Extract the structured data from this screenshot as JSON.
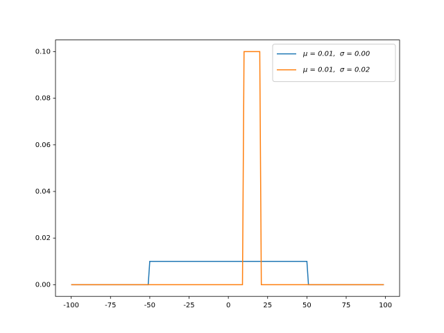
{
  "chart_data": {
    "type": "line",
    "series": [
      {
        "name": "μ = 0.01,  σ = 0.00",
        "color": "#1f77b4",
        "x": [
          -100,
          -51,
          -50,
          50,
          51,
          99
        ],
        "values": [
          0,
          0,
          0.01,
          0.01,
          0,
          0
        ]
      },
      {
        "name": "μ = 0.01,  σ = 0.02",
        "color": "#ff7f0e",
        "x": [
          -100,
          9,
          10,
          20,
          21,
          99
        ],
        "values": [
          0,
          0,
          0.1,
          0.1,
          0,
          0
        ]
      }
    ],
    "xlim": [
      -110,
      109
    ],
    "ylim": [
      -0.005,
      0.105
    ],
    "xticks": [
      -100,
      -75,
      -50,
      -25,
      0,
      25,
      50,
      75,
      100
    ],
    "yticks": [
      {
        "value": 0,
        "label": "0.00"
      },
      {
        "value": 0.02,
        "label": "0.02"
      },
      {
        "value": 0.04,
        "label": "0.04"
      },
      {
        "value": 0.06,
        "label": "0.06"
      },
      {
        "value": 0.08,
        "label": "0.08"
      },
      {
        "value": 0.1,
        "label": "0.10"
      }
    ],
    "legend": "upper right"
  }
}
